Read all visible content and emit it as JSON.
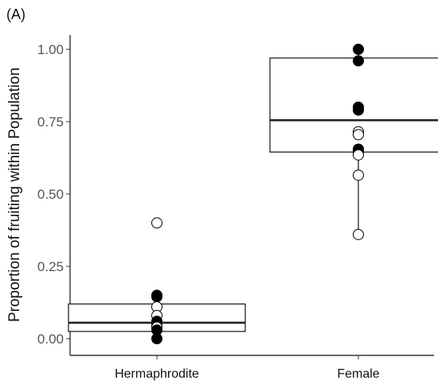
{
  "panel_label": "(A)",
  "chart_data": {
    "type": "boxplot",
    "title": "",
    "xlabel": "",
    "ylabel": "Proportion of fruiting within Population",
    "ylim": [
      0,
      1
    ],
    "yticks": [
      "0.00",
      "0.25",
      "0.50",
      "0.75",
      "1.00"
    ],
    "yticks_values": [
      0,
      0.25,
      0.5,
      0.75,
      1.0
    ],
    "categories": [
      "Hermaphrodite",
      "Female"
    ],
    "grid": false,
    "boxes": [
      {
        "category": "Hermaphrodite",
        "q1": 0.025,
        "median": 0.055,
        "q3": 0.12,
        "whisker_low": 0.0,
        "whisker_high": 0.15
      },
      {
        "category": "Female",
        "q1": 0.645,
        "median": 0.755,
        "q3": 0.97,
        "whisker_low": 0.36,
        "whisker_high": 1.0
      }
    ],
    "points": [
      {
        "category": "Hermaphrodite",
        "y": 0.4,
        "fill": "open"
      },
      {
        "category": "Hermaphrodite",
        "y": 0.15,
        "fill": "filled"
      },
      {
        "category": "Hermaphrodite",
        "y": 0.145,
        "fill": "filled"
      },
      {
        "category": "Hermaphrodite",
        "y": 0.11,
        "fill": "open"
      },
      {
        "category": "Hermaphrodite",
        "y": 0.08,
        "fill": "open"
      },
      {
        "category": "Hermaphrodite",
        "y": 0.06,
        "fill": "filled"
      },
      {
        "category": "Hermaphrodite",
        "y": 0.05,
        "fill": "filled"
      },
      {
        "category": "Hermaphrodite",
        "y": 0.04,
        "fill": "open"
      },
      {
        "category": "Hermaphrodite",
        "y": 0.03,
        "fill": "filled"
      },
      {
        "category": "Hermaphrodite",
        "y": 0.0,
        "fill": "filled"
      },
      {
        "category": "Female",
        "y": 1.0,
        "fill": "filled"
      },
      {
        "category": "Female",
        "y": 0.96,
        "fill": "filled"
      },
      {
        "category": "Female",
        "y": 0.8,
        "fill": "filled"
      },
      {
        "category": "Female",
        "y": 0.79,
        "fill": "filled"
      },
      {
        "category": "Female",
        "y": 0.715,
        "fill": "open"
      },
      {
        "category": "Female",
        "y": 0.705,
        "fill": "open"
      },
      {
        "category": "Female",
        "y": 0.655,
        "fill": "filled"
      },
      {
        "category": "Female",
        "y": 0.645,
        "fill": "filled"
      },
      {
        "category": "Female",
        "y": 0.635,
        "fill": "open"
      },
      {
        "category": "Female",
        "y": 0.565,
        "fill": "open"
      },
      {
        "category": "Female",
        "y": 0.36,
        "fill": "open"
      }
    ],
    "colors": {
      "filled": "#000000",
      "open": "#ffffff",
      "stroke": "#000000"
    }
  }
}
